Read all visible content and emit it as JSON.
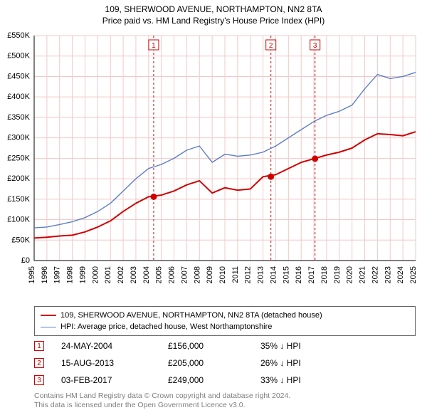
{
  "title_line1": "109, SHERWOOD AVENUE, NORTHAMPTON, NN2 8TA",
  "title_line2": "Price paid vs. HM Land Registry's House Price Index (HPI)",
  "chart": {
    "type": "line",
    "background_color": "#ffffff",
    "grid_color": "#f3c8c8",
    "axis_color": "#000000",
    "label_color": "#000000",
    "label_fontsize": 11,
    "x_years": [
      1995,
      1996,
      1997,
      1998,
      1999,
      2000,
      2001,
      2002,
      2003,
      2004,
      2005,
      2006,
      2007,
      2008,
      2009,
      2010,
      2011,
      2012,
      2013,
      2014,
      2015,
      2016,
      2017,
      2018,
      2019,
      2020,
      2021,
      2022,
      2023,
      2024,
      2025
    ],
    "ylim": [
      0,
      550000
    ],
    "ytick_step": 50000,
    "ytick_labels": [
      "£0",
      "£50K",
      "£100K",
      "£150K",
      "£200K",
      "£250K",
      "£300K",
      "£350K",
      "£400K",
      "£450K",
      "£500K",
      "£550K"
    ],
    "series": [
      {
        "name": "property",
        "color": "#d00000",
        "line_width": 2,
        "label": "109, SHERWOOD AVENUE, NORTHAMPTON, NN2 8TA (detached house)",
        "points": [
          [
            1995,
            55000
          ],
          [
            1996,
            57000
          ],
          [
            1997,
            60000
          ],
          [
            1998,
            62000
          ],
          [
            1999,
            70000
          ],
          [
            2000,
            82000
          ],
          [
            2001,
            97000
          ],
          [
            2002,
            120000
          ],
          [
            2003,
            140000
          ],
          [
            2004,
            156000
          ],
          [
            2005,
            160000
          ],
          [
            2006,
            170000
          ],
          [
            2007,
            185000
          ],
          [
            2008,
            195000
          ],
          [
            2009,
            165000
          ],
          [
            2010,
            178000
          ],
          [
            2011,
            172000
          ],
          [
            2012,
            175000
          ],
          [
            2013,
            205000
          ],
          [
            2014,
            210000
          ],
          [
            2015,
            225000
          ],
          [
            2016,
            240000
          ],
          [
            2017,
            249000
          ],
          [
            2018,
            258000
          ],
          [
            2019,
            265000
          ],
          [
            2020,
            275000
          ],
          [
            2021,
            295000
          ],
          [
            2022,
            310000
          ],
          [
            2023,
            308000
          ],
          [
            2024,
            305000
          ],
          [
            2025,
            315000
          ]
        ]
      },
      {
        "name": "hpi",
        "color": "#5b7fc7",
        "line_width": 1.4,
        "label": "HPI: Average price, detached house, West Northamptonshire",
        "points": [
          [
            1995,
            80000
          ],
          [
            1996,
            82000
          ],
          [
            1997,
            88000
          ],
          [
            1998,
            95000
          ],
          [
            1999,
            105000
          ],
          [
            2000,
            120000
          ],
          [
            2001,
            140000
          ],
          [
            2002,
            170000
          ],
          [
            2003,
            200000
          ],
          [
            2004,
            225000
          ],
          [
            2005,
            235000
          ],
          [
            2006,
            250000
          ],
          [
            2007,
            270000
          ],
          [
            2008,
            280000
          ],
          [
            2009,
            240000
          ],
          [
            2010,
            260000
          ],
          [
            2011,
            255000
          ],
          [
            2012,
            258000
          ],
          [
            2013,
            265000
          ],
          [
            2014,
            280000
          ],
          [
            2015,
            300000
          ],
          [
            2016,
            320000
          ],
          [
            2017,
            340000
          ],
          [
            2018,
            355000
          ],
          [
            2019,
            365000
          ],
          [
            2020,
            380000
          ],
          [
            2021,
            420000
          ],
          [
            2022,
            455000
          ],
          [
            2023,
            445000
          ],
          [
            2024,
            450000
          ],
          [
            2025,
            460000
          ]
        ]
      }
    ],
    "sale_markers": [
      {
        "id": "1",
        "x": 2004.4,
        "y": 156000,
        "dashed_color": "#d00000"
      },
      {
        "id": "2",
        "x": 2013.62,
        "y": 205000,
        "dashed_color": "#d00000"
      },
      {
        "id": "3",
        "x": 2017.09,
        "y": 249000,
        "dashed_color": "#d00000"
      }
    ],
    "sale_marker_radius": 4.5,
    "sale_marker_fill": "#d00000",
    "sale_badge_border": "#d00000",
    "sale_badge_text_color": "#d00000",
    "sale_badge_bg": "#ffffff"
  },
  "legend": {
    "rows": [
      {
        "color": "#d00000",
        "width": 2,
        "text": "109, SHERWOOD AVENUE, NORTHAMPTON, NN2 8TA (detached house)"
      },
      {
        "color": "#5b7fc7",
        "width": 1.4,
        "text": "HPI: Average price, detached house, West Northamptonshire"
      }
    ]
  },
  "sales": [
    {
      "badge": "1",
      "date": "24-MAY-2004",
      "price": "£156,000",
      "pct": "35% ↓ HPI"
    },
    {
      "badge": "2",
      "date": "15-AUG-2013",
      "price": "£205,000",
      "pct": "26% ↓ HPI"
    },
    {
      "badge": "3",
      "date": "03-FEB-2017",
      "price": "£249,000",
      "pct": "33% ↓ HPI"
    }
  ],
  "footer_line1": "Contains HM Land Registry data © Crown copyright and database right 2024.",
  "footer_line2": "This data is licensed under the Open Government Licence v3.0."
}
